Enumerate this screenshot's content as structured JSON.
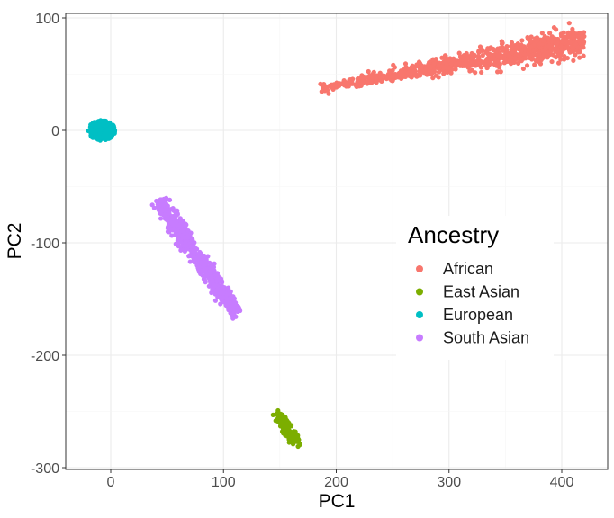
{
  "chart_data": {
    "type": "scatter",
    "xlabel": "PC1",
    "ylabel": "PC2",
    "xlim": [
      -40,
      440
    ],
    "ylim": [
      -300,
      100
    ],
    "xticks": [
      0,
      100,
      200,
      300,
      400
    ],
    "yticks": [
      100,
      0,
      -100,
      -200,
      -300
    ],
    "xtick_labels": [
      "0",
      "100",
      "200",
      "300",
      "400"
    ],
    "ytick_labels": [
      "100",
      "0",
      "-100",
      "-200",
      "-300"
    ],
    "grid": true,
    "legend": {
      "title": "Ancestry",
      "position": "right"
    },
    "series": [
      {
        "name": "African",
        "color": "#F8766D",
        "cluster": {
          "x_range": [
            185,
            420
          ],
          "y_range": [
            37,
            80
          ],
          "trend": "linear",
          "x_center": 300,
          "y_center": 60
        }
      },
      {
        "name": "East Asian",
        "color": "#7CAE00",
        "cluster": {
          "x_range": [
            148,
            168
          ],
          "y_range": [
            -278,
            -253
          ],
          "trend": "diagonal",
          "x_center": 157,
          "y_center": -266
        }
      },
      {
        "name": "European",
        "color": "#00BFC4",
        "cluster": {
          "x_range": [
            -22,
            6
          ],
          "y_range": [
            -10,
            10
          ],
          "trend": "blob",
          "x_center": -8,
          "y_center": 0
        }
      },
      {
        "name": "South Asian",
        "color": "#C77CFF",
        "cluster": {
          "x_range": [
            43,
            115
          ],
          "y_range": [
            -165,
            -63
          ],
          "trend": "linear",
          "x_center": 80,
          "y_center": -115
        }
      }
    ]
  }
}
